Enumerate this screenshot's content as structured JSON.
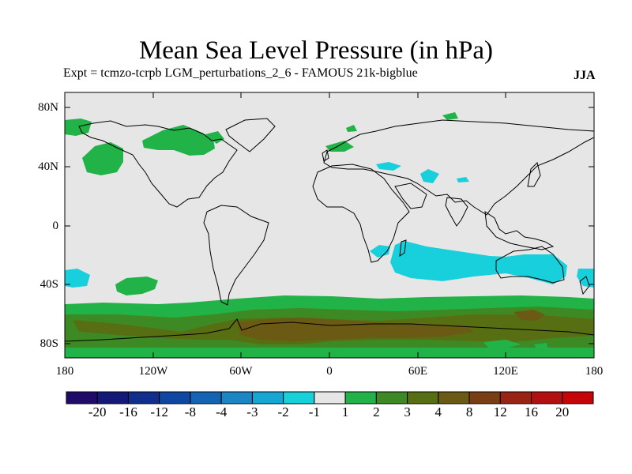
{
  "title": "Mean Sea Level Pressure (in hPa)",
  "subtitle": "Expt = tcmzo-tcrpb    LGM_perturbations_2_6 - FAMOUS 21k-bigblue",
  "season": "JJA",
  "axes": {
    "lat_labels": [
      "80N",
      "40N",
      "0",
      "40S",
      "80S"
    ],
    "lon_labels": [
      "180",
      "120W",
      "60W",
      "0",
      "60E",
      "120E",
      "180"
    ]
  },
  "colorbar": {
    "labels": [
      "-20",
      "-16",
      "-12",
      "-8",
      "-4",
      "-3",
      "-2",
      "-1",
      "1",
      "2",
      "3",
      "4",
      "8",
      "12",
      "16",
      "20"
    ],
    "colors": [
      "#200a6a",
      "#141879",
      "#0f2e8d",
      "#0f48a3",
      "#1464b6",
      "#1b86c6",
      "#17a5d4",
      "#17d0dc",
      "#e6e6e6",
      "#22b348",
      "#3d8a25",
      "#586e13",
      "#6a5a13",
      "#7b3e12",
      "#9a2414",
      "#b31010",
      "#c60606"
    ]
  },
  "colors": {
    "no_change": "#e6e6e6",
    "green_1_2": "#22b348",
    "green_2_3": "#3d8a25",
    "olive_3_4": "#586e13",
    "brown_4_8": "#6a5a13",
    "cyan_m1_m2": "#17d0dc"
  }
}
